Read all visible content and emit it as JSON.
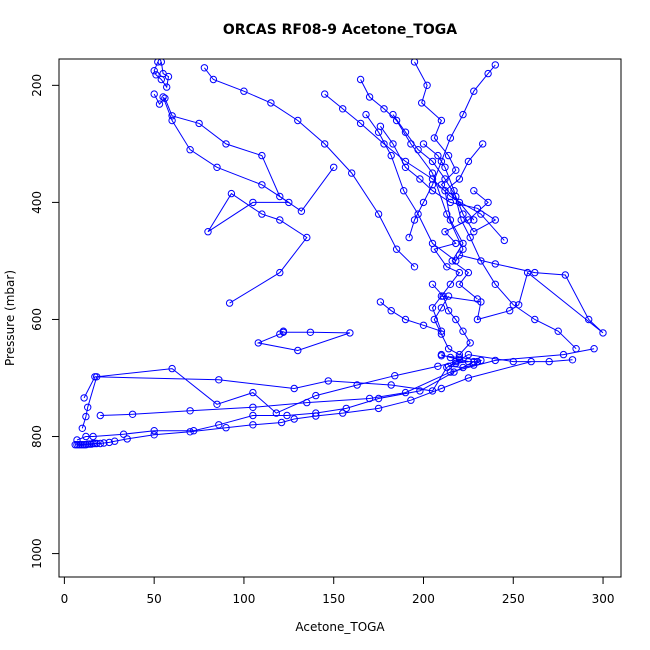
{
  "chart_data": {
    "type": "line",
    "title": "ORCAS RF08-9 Acetone_TOGA",
    "xlabel": "Acetone_TOGA",
    "ylabel": "Pressure (mbar)",
    "xlim": [
      -3,
      310
    ],
    "ylim": [
      1040,
      155
    ],
    "x_ticks": [
      0,
      50,
      100,
      150,
      200,
      250,
      300
    ],
    "y_ticks": [
      200,
      400,
      600,
      800,
      1000
    ],
    "grid": false,
    "legend": "none",
    "series_color": "#0000ff",
    "series": [
      {
        "x": [
          6,
          7,
          8,
          9,
          10,
          11,
          12,
          13,
          14,
          15,
          16,
          17,
          18,
          20,
          22,
          25,
          28,
          35,
          50,
          70,
          90,
          105,
          121,
          128,
          140,
          155,
          175,
          193,
          210,
          225,
          260
        ],
        "y": [
          814,
          814,
          814,
          814,
          814,
          814,
          814,
          813,
          813,
          813,
          812,
          812,
          812,
          812,
          811,
          810,
          808,
          804,
          797,
          792,
          785,
          780,
          776,
          770,
          765,
          760,
          752,
          738,
          718,
          700,
          672
        ]
      },
      {
        "x": [
          7,
          12,
          16,
          33,
          50,
          72,
          86,
          105,
          124,
          140,
          157,
          175,
          198,
          217,
          228
        ],
        "y": [
          806,
          800,
          800,
          796,
          790,
          790,
          780,
          764,
          764,
          760,
          752,
          735,
          722,
          690,
          672
        ]
      },
      {
        "x": [
          10,
          12,
          13,
          18,
          60,
          85,
          105,
          118,
          140,
          163,
          184,
          208,
          218,
          230
        ],
        "y": [
          786,
          766,
          750,
          698,
          684,
          745,
          725,
          760,
          730,
          712,
          696,
          680,
          672,
          672
        ]
      },
      {
        "x": [
          11,
          17,
          86,
          128,
          147,
          182,
          205,
          213,
          225,
          250,
          270,
          283
        ],
        "y": [
          734,
          698,
          703,
          718,
          705,
          712,
          722,
          682,
          660,
          672,
          672,
          669
        ]
      },
      {
        "x": [
          20,
          38,
          70,
          105,
          135,
          170,
          190,
          215,
          240,
          278,
          295
        ],
        "y": [
          764,
          762,
          756,
          750,
          742,
          735,
          725,
          690,
          670,
          660,
          650
        ]
      },
      {
        "x": [
          122,
          137,
          159,
          130,
          108,
          120,
          122
        ],
        "y": [
          622,
          622,
          623,
          653,
          640,
          625,
          620
        ]
      },
      {
        "x": [
          92,
          120,
          135,
          120,
          110,
          93,
          80,
          105,
          125,
          110,
          85,
          70,
          60,
          55
        ],
        "y": [
          572,
          520,
          460,
          430,
          420,
          385,
          450,
          400,
          400,
          370,
          340,
          310,
          260,
          220
        ]
      },
      {
        "x": [
          210,
          232,
          230,
          248,
          253,
          258,
          300,
          292,
          279,
          262,
          240,
          220
        ],
        "y": [
          560,
          570,
          600,
          585,
          575,
          520,
          623,
          600,
          524,
          520,
          505,
          490
        ]
      },
      {
        "x": [
          176,
          182,
          190,
          200,
          210,
          205,
          215,
          220,
          213,
          206,
          218,
          212,
          225,
          236,
          228
        ],
        "y": [
          570,
          585,
          600,
          610,
          620,
          580,
          540,
          520,
          510,
          480,
          470,
          450,
          430,
          400,
          380
        ]
      },
      {
        "x": [
          183,
          190,
          197,
          205,
          212,
          218,
          222,
          228,
          240,
          230,
          215,
          205,
          198,
          190,
          183,
          176
        ],
        "y": [
          250,
          280,
          310,
          330,
          360,
          390,
          420,
          450,
          430,
          410,
          400,
          380,
          360,
          340,
          300,
          270
        ]
      },
      {
        "x": [
          165,
          170,
          178,
          185,
          193,
          205,
          213,
          222,
          218,
          205,
          197,
          189,
          182,
          175,
          168
        ],
        "y": [
          190,
          220,
          240,
          260,
          300,
          350,
          420,
          480,
          500,
          470,
          420,
          380,
          320,
          280,
          250
        ]
      },
      {
        "x": [
          52,
          50,
          51,
          54,
          57,
          58,
          55,
          54
        ],
        "y": [
          160,
          175,
          182,
          190,
          203,
          185,
          180,
          160
        ]
      },
      {
        "x": [
          50,
          53,
          56,
          60,
          75,
          90,
          110,
          120,
          132,
          150
        ],
        "y": [
          215,
          232,
          222,
          252,
          265,
          300,
          320,
          390,
          415,
          340
        ]
      },
      {
        "x": [
          78,
          83,
          100,
          115,
          130,
          145,
          160,
          175,
          185,
          195
        ],
        "y": [
          170,
          190,
          210,
          230,
          260,
          300,
          350,
          420,
          480,
          510
        ]
      },
      {
        "x": [
          145,
          155,
          165,
          178,
          190,
          205,
          215,
          232,
          245
        ],
        "y": [
          215,
          240,
          265,
          300,
          330,
          360,
          390,
          420,
          465
        ]
      },
      {
        "x": [
          200,
          208,
          212,
          217,
          221,
          226,
          232,
          240,
          250,
          262,
          275,
          285
        ],
        "y": [
          300,
          320,
          340,
          380,
          430,
          460,
          500,
          540,
          575,
          600,
          620,
          650
        ]
      },
      {
        "x": [
          233,
          225,
          220,
          212,
          215,
          222,
          216,
          225,
          220,
          230
        ],
        "y": [
          300,
          330,
          360,
          380,
          430,
          470,
          500,
          520,
          540,
          565
        ]
      },
      {
        "x": [
          195,
          202,
          199,
          210,
          206,
          214,
          218,
          210,
          220,
          228
        ],
        "y": [
          160,
          200,
          230,
          260,
          290,
          320,
          345,
          370,
          400,
          430
        ]
      },
      {
        "x": [
          240,
          236,
          228,
          222,
          215,
          210,
          205,
          200,
          195,
          192
        ],
        "y": [
          165,
          180,
          210,
          250,
          290,
          330,
          370,
          400,
          430,
          460
        ]
      },
      {
        "x": [
          205,
          211,
          214,
          218,
          222,
          226,
          220,
          214,
          210,
          206,
          210,
          214
        ],
        "y": [
          540,
          560,
          585,
          600,
          620,
          640,
          660,
          650,
          625,
          600,
          580,
          560
        ]
      },
      {
        "x": [
          210,
          215,
          220,
          225,
          218,
          214,
          222,
          228,
          232,
          220,
          210
        ],
        "y": [
          660,
          665,
          668,
          672,
          675,
          680,
          682,
          678,
          670,
          665,
          662
        ]
      }
    ]
  }
}
